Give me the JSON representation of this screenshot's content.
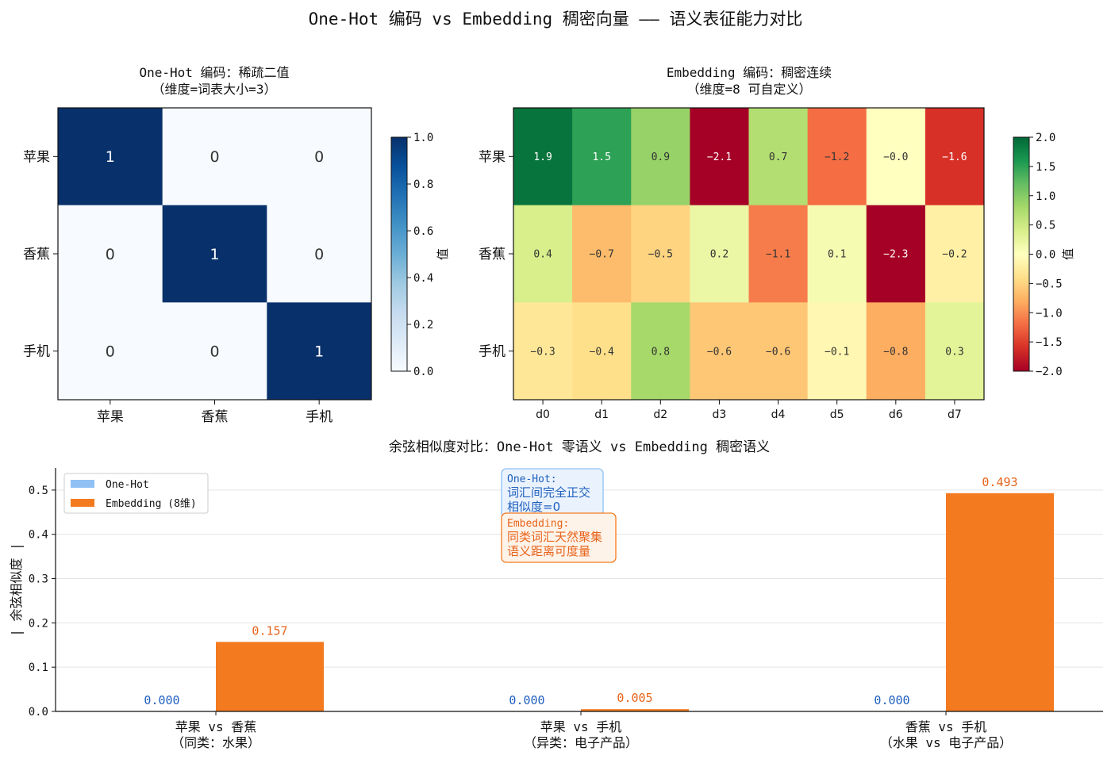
{
  "title": "One-Hot 编码 vs Embedding 稠密向量 —— 语义表征能力对比",
  "chart_data": [
    {
      "type": "heatmap",
      "title_line1": "One-Hot 编码：稀疏二值",
      "title_line2": "（维度=词表大小=3）",
      "rows": [
        "苹果",
        "香蕉",
        "手机"
      ],
      "cols": [
        "苹果",
        "香蕉",
        "手机"
      ],
      "values": [
        [
          1,
          0,
          0
        ],
        [
          0,
          1,
          0
        ],
        [
          0,
          0,
          1
        ]
      ],
      "colormap": "Blues",
      "vmin": 0,
      "vmax": 1,
      "colorbar_ticks": [
        "0.0",
        "0.2",
        "0.4",
        "0.6",
        "0.8",
        "1.0"
      ],
      "colorbar_label": "值"
    },
    {
      "type": "heatmap",
      "title_line1": "Embedding 编码：稠密连续",
      "title_line2": "（维度=8 可自定义）",
      "rows": [
        "苹果",
        "香蕉",
        "手机"
      ],
      "cols": [
        "d0",
        "d1",
        "d2",
        "d3",
        "d4",
        "d5",
        "d6",
        "d7"
      ],
      "values": [
        [
          1.9,
          1.5,
          0.9,
          -2.1,
          0.7,
          -1.2,
          -0.0,
          -1.6
        ],
        [
          0.4,
          -0.7,
          -0.5,
          0.2,
          -1.1,
          0.1,
          -2.3,
          -0.2
        ],
        [
          -0.3,
          -0.4,
          0.8,
          -0.6,
          -0.6,
          -0.1,
          -0.8,
          0.3
        ]
      ],
      "labels": [
        [
          "1.9",
          "1.5",
          "0.9",
          "−2.1",
          "0.7",
          "−1.2",
          "−0.0",
          "−1.6"
        ],
        [
          "0.4",
          "−0.7",
          "−0.5",
          "0.2",
          "−1.1",
          "0.1",
          "−2.3",
          "−0.2"
        ],
        [
          "−0.3",
          "−0.4",
          "0.8",
          "−0.6",
          "−0.6",
          "−0.1",
          "−0.8",
          "0.3"
        ]
      ],
      "colormap": "RdYlGn",
      "vmin": -2,
      "vmax": 2,
      "colorbar_ticks": [
        "−2.0",
        "−1.5",
        "−1.0",
        "−0.5",
        "0.0",
        "0.5",
        "1.0",
        "1.5",
        "2.0"
      ],
      "colorbar_label": "值"
    },
    {
      "type": "bar",
      "title": "余弦相似度对比：One-Hot 零语义 vs Embedding 稠密语义",
      "ylabel": "| 余弦相似度 |",
      "ylim": [
        0,
        0.55
      ],
      "yticks": [
        "0.0",
        "0.1",
        "0.2",
        "0.3",
        "0.4",
        "0.5"
      ],
      "grid": "horizontal",
      "legend_position": "top-left",
      "categories": [
        [
          "苹果 vs 香蕉",
          "（同类：水果）"
        ],
        [
          "苹果 vs 手机",
          "（异类：电子产品）"
        ],
        [
          "香蕉 vs 手机",
          "（水果 vs 电子产品）"
        ]
      ],
      "series": [
        {
          "name": "One-Hot",
          "color": "#90c0f4",
          "label_color": "#1f5fbf",
          "values": [
            0.0,
            0.0,
            0.0
          ],
          "labels": [
            "0.000",
            "0.000",
            "0.000"
          ]
        },
        {
          "name": "Embedding (8维)",
          "color": "#f47a1f",
          "label_color": "#e8631a",
          "values": [
            0.157,
            0.005,
            0.493
          ],
          "labels": [
            "0.157",
            "0.005",
            "0.493"
          ]
        }
      ],
      "annotations": [
        {
          "lines": [
            "One-Hot:",
            "词汇间完全正交",
            "相似度=0"
          ],
          "border": "#90c0f4",
          "fill": "#eaf3fd",
          "color": "#1f5fbf"
        },
        {
          "lines": [
            "Embedding:",
            "同类词汇天然聚集",
            "语义距离可度量"
          ],
          "border": "#f47a1f",
          "fill": "#fef3e9",
          "color": "#e8631a"
        }
      ]
    }
  ]
}
